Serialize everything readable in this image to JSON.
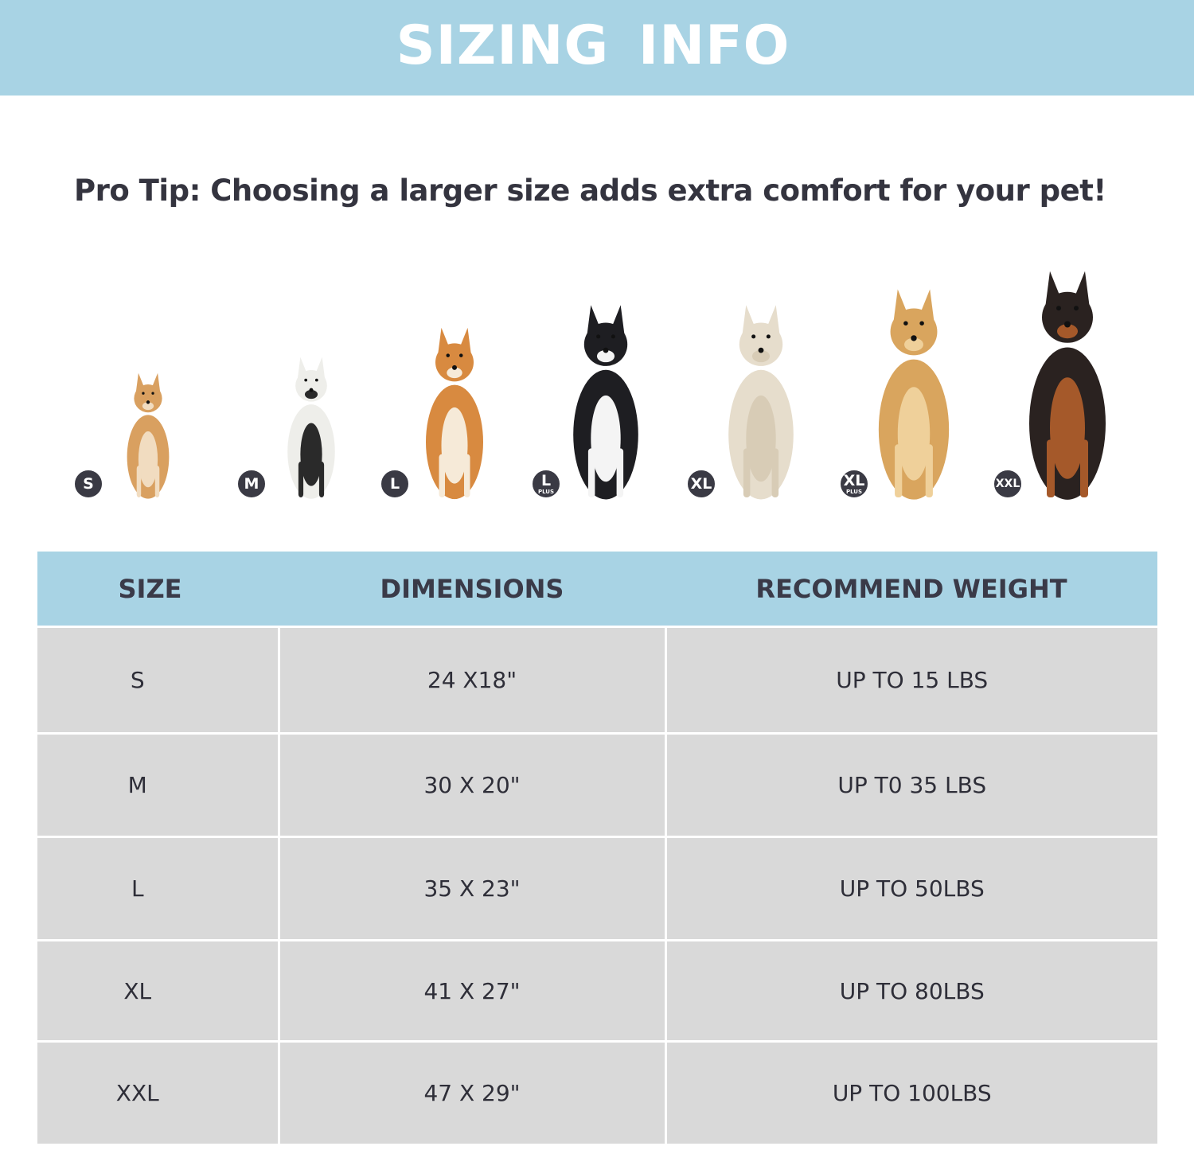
{
  "header": {
    "title": "SIZING INFO"
  },
  "tip": "Pro Tip: Choosing a larger size adds extra comfort for your pet!",
  "colors": {
    "banner": "#a8d3e4",
    "row": "#d9d9d9",
    "badge": "#3a3a44",
    "text": "#383845"
  },
  "dogs": [
    {
      "badge": "S",
      "plus": "",
      "fur": "#d9a060",
      "accent": "#f1dcc0"
    },
    {
      "badge": "M",
      "plus": "",
      "fur": "#eeeeea",
      "accent": "#2a2a2a"
    },
    {
      "badge": "L",
      "plus": "",
      "fur": "#d88a40",
      "accent": "#f6ead8"
    },
    {
      "badge": "L",
      "plus": "PLUS",
      "fur": "#1e1e22",
      "accent": "#f4f4f4"
    },
    {
      "badge": "XL",
      "plus": "",
      "fur": "#e6ddcc",
      "accent": "#d8ccb6"
    },
    {
      "badge": "XL",
      "plus": "PLUS",
      "fur": "#d9a55e",
      "accent": "#efd09a"
    },
    {
      "badge": "XXL",
      "plus": "",
      "fur": "#2a2220",
      "accent": "#a5592a"
    }
  ],
  "table": {
    "headers": [
      "SIZE",
      "DIMENSIONS",
      "RECOMMEND WEIGHT"
    ],
    "rows": [
      [
        "S",
        "24 X18\"",
        "UP TO 15 LBS"
      ],
      [
        "M",
        "30 X 20\"",
        "UP T0 35 LBS"
      ],
      [
        "L",
        "35 X 23\"",
        "UP TO 50LBS"
      ],
      [
        "XL",
        "41 X 27\"",
        "UP TO 80LBS"
      ],
      [
        "XXL",
        "47 X 29\"",
        "UP TO 100LBS"
      ]
    ]
  }
}
